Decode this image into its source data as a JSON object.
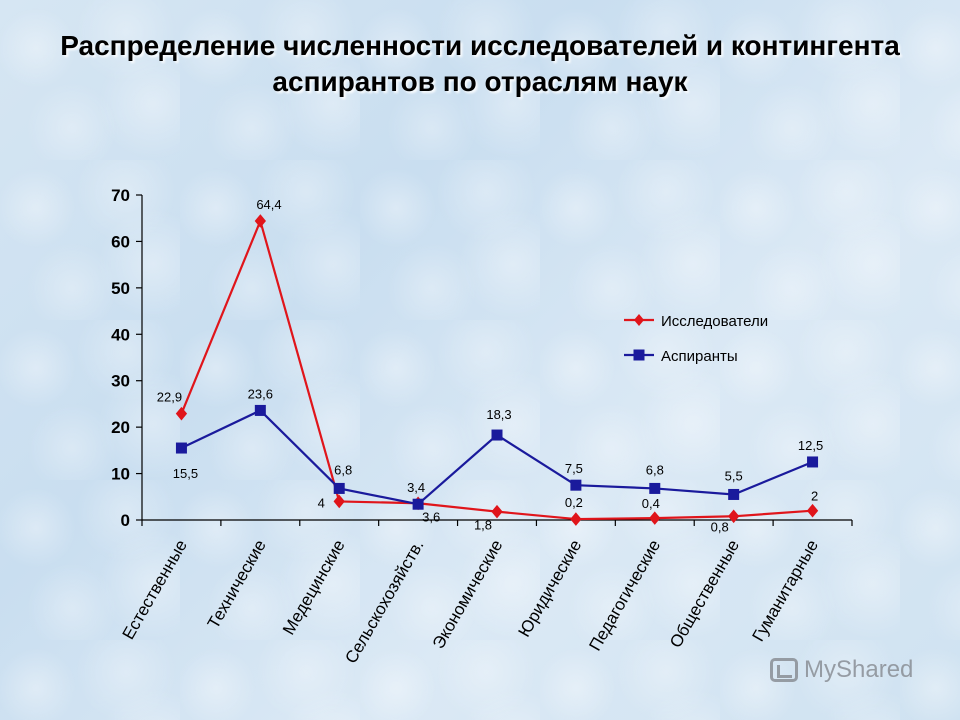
{
  "title_line1": "Распределение численности исследователей и контингента",
  "title_line2": "аспирантов по отраслям наук",
  "watermark": "MyShared",
  "chart_data": {
    "type": "line",
    "categories": [
      "Естественные",
      "Технические",
      "Медецинские",
      "Сельскохозяйств.",
      "Экономические",
      "Юридические",
      "Педагогические",
      "Общественные",
      "Гуманитарные"
    ],
    "series": [
      {
        "name": "Исследователи",
        "values": [
          22.9,
          64.4,
          4,
          3.6,
          1.8,
          0.2,
          0.4,
          0.8,
          2
        ],
        "labels": [
          "22,9",
          "64,4",
          "4",
          "3,6",
          "1,8",
          "0,2",
          "0,4",
          "0,8",
          "2"
        ],
        "color": "#e0151b",
        "marker": "diamond"
      },
      {
        "name": "Аспиранты",
        "values": [
          15.5,
          23.6,
          6.8,
          3.4,
          18.3,
          7.5,
          6.8,
          5.5,
          12.5
        ],
        "labels": [
          "15,5",
          "23,6",
          "6,8",
          "3,4",
          "18,3",
          "7,5",
          "6,8",
          "5,5",
          "12,5"
        ],
        "color": "#1a1a9c",
        "marker": "square"
      }
    ],
    "yticks": [
      "0",
      "10",
      "20",
      "30",
      "40",
      "50",
      "60",
      "70"
    ],
    "ylim": [
      0,
      70
    ],
    "grid": false,
    "legend_position": "right"
  }
}
